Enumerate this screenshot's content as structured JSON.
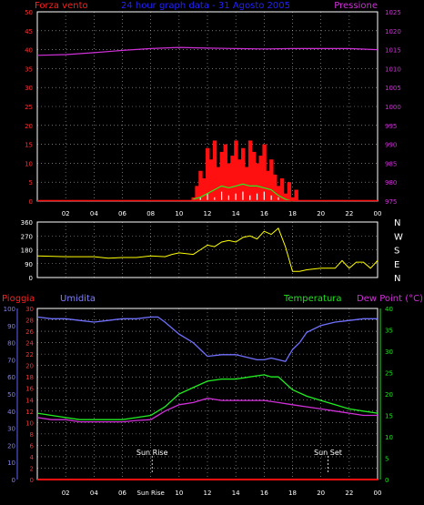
{
  "colors": {
    "background": "#000000",
    "frame": "#ffffff",
    "grid": "#ffffff",
    "wind": "#ff1010",
    "wind_speed": "#ffffff",
    "gust": "#22ee22",
    "pressure": "#d030d8",
    "title": "#2222ff",
    "direction": "#ffff00",
    "humidity": "#7070ff",
    "temperature": "#22ee22",
    "dewpoint": "#d030d8",
    "rain": "#ff1010",
    "axis_rain": "#ff3030",
    "axis_humidity": "#8080ff",
    "axis_temp": "#20e020"
  },
  "chart_data": [
    {
      "type": "line",
      "title": "24 hour graph data - 31 Agosto 2005",
      "left_label": "Forza vento",
      "right_label": "Pressione",
      "x_ticks": [
        "02",
        "04",
        "06",
        "08",
        "10",
        "12",
        "14",
        "16",
        "18",
        "20",
        "22",
        "00"
      ],
      "left_ticks": [
        0,
        5,
        10,
        15,
        20,
        25,
        30,
        35,
        40,
        45,
        50
      ],
      "ylim_left": [
        0,
        50
      ],
      "right_ticks": [
        975,
        980,
        985,
        990,
        995,
        1000,
        1005,
        1010,
        1015,
        1020,
        1025
      ],
      "ylim_right": [
        975,
        1025
      ],
      "series": [
        {
          "id": "pressure",
          "axis": "right",
          "x": [
            0,
            2,
            4,
            6,
            8,
            10,
            12,
            14,
            16,
            18,
            20,
            22,
            24
          ],
          "values": [
            1013.5,
            1013.7,
            1014.2,
            1014.8,
            1015.3,
            1015.6,
            1015.4,
            1015.3,
            1015.2,
            1015.3,
            1015.3,
            1015.3,
            1015.0
          ]
        },
        {
          "id": "wind_gust",
          "axis": "left",
          "style": "bars",
          "x": [
            11,
            11.25,
            11.5,
            11.75,
            12,
            12.25,
            12.5,
            12.75,
            13,
            13.25,
            13.5,
            13.75,
            14,
            14.25,
            14.5,
            14.75,
            15,
            15.25,
            15.5,
            15.75,
            16,
            16.25,
            16.5,
            16.75,
            17,
            17.25,
            17.5,
            17.75,
            18,
            18.25
          ],
          "values": [
            1,
            4,
            8,
            6,
            14,
            11,
            16,
            9,
            13,
            15,
            10,
            12,
            16,
            11,
            14,
            9,
            16,
            13,
            10,
            12,
            15,
            8,
            11,
            7,
            4,
            6,
            2,
            5,
            1,
            3
          ]
        },
        {
          "id": "wind_average",
          "axis": "left",
          "x": [
            11,
            11.5,
            12,
            12.5,
            13,
            13.5,
            14,
            14.5,
            15,
            15.5,
            16,
            16.5,
            17,
            17.5,
            18
          ],
          "values": [
            0.5,
            1,
            2,
            3,
            4,
            3.5,
            4,
            4.5,
            4,
            4,
            3.5,
            3,
            1.5,
            0.5,
            0
          ]
        },
        {
          "id": "wind_speed",
          "axis": "left",
          "style": "spikes",
          "x": [
            11.5,
            12,
            12.5,
            13,
            13.5,
            14,
            14.5,
            15,
            15.5,
            16,
            16.5,
            17
          ],
          "values": [
            1,
            2,
            1,
            2.5,
            1.5,
            2,
            2.5,
            1.5,
            2,
            2.5,
            1.5,
            1
          ]
        }
      ]
    },
    {
      "type": "line",
      "y_ticks": [
        0,
        90,
        180,
        270,
        360
      ],
      "ylim": [
        0,
        360
      ],
      "compass_labels": [
        "N",
        "W",
        "S",
        "E",
        "N"
      ],
      "series": [
        {
          "id": "wind_direction",
          "x": [
            0,
            2,
            4,
            5,
            6,
            7,
            8,
            9,
            9.5,
            10,
            11,
            11.5,
            12,
            12.5,
            13,
            13.5,
            14,
            14.5,
            15,
            15.5,
            16,
            16.5,
            17,
            17.5,
            18,
            18.5,
            19,
            20,
            21,
            21.5,
            22,
            22.5,
            23,
            23.5,
            24
          ],
          "values": [
            140,
            135,
            135,
            125,
            130,
            130,
            140,
            135,
            150,
            160,
            150,
            180,
            210,
            200,
            230,
            240,
            230,
            260,
            270,
            250,
            300,
            280,
            320,
            200,
            40,
            40,
            50,
            60,
            60,
            110,
            60,
            100,
            100,
            60,
            110
          ]
        }
      ]
    },
    {
      "type": "line",
      "left1_label": "Pioggia",
      "left2_label": "Umidita",
      "right1_label": "Temperatura",
      "right2_label": "Dew Point (°C)",
      "x_ticks": [
        "02",
        "04",
        "06",
        "Sun Rise",
        "10",
        "12",
        "14",
        "16",
        "18",
        "20",
        "22",
        "00"
      ],
      "rain_ticks": [
        0,
        2,
        4,
        6,
        8,
        10,
        12,
        14,
        16,
        18,
        20,
        22,
        24,
        26,
        28,
        30
      ],
      "humidity_ticks": [
        0,
        10,
        20,
        30,
        40,
        50,
        60,
        70,
        80,
        90,
        100
      ],
      "temp_ticks": [
        0,
        5,
        10,
        15,
        20,
        25,
        30,
        35,
        40
      ],
      "ylim_rain": [
        0,
        30
      ],
      "ylim_humidity": [
        0,
        100
      ],
      "ylim_temp": [
        0,
        40
      ],
      "annotations": [
        {
          "label": "Sun Rise",
          "x": 8.1
        },
        {
          "label": "Sun Set",
          "x": 20.5
        }
      ],
      "series": [
        {
          "id": "humidity",
          "axis": "humidity",
          "x": [
            0,
            1,
            2,
            3,
            4,
            5,
            6,
            7,
            8,
            8.5,
            9,
            10,
            11,
            11.5,
            12,
            13,
            14,
            15,
            15.5,
            16,
            16.5,
            17,
            17.5,
            18,
            18.5,
            19,
            20,
            21,
            22,
            23,
            24
          ],
          "values": [
            95,
            94,
            94,
            93,
            92,
            93,
            94,
            94,
            95,
            95,
            92,
            85,
            80,
            76,
            72,
            73,
            73,
            71,
            70,
            70,
            71,
            70,
            69,
            76,
            80,
            86,
            90,
            92,
            93,
            94,
            94
          ]
        },
        {
          "id": "temperature",
          "axis": "temp",
          "x": [
            0,
            1,
            2,
            3,
            4,
            5,
            6,
            7,
            8,
            9,
            10,
            11,
            12,
            13,
            14,
            15,
            16,
            16.5,
            17,
            18,
            19,
            20,
            21,
            22,
            23,
            24
          ],
          "values": [
            15.5,
            15,
            14.5,
            14,
            14,
            14,
            14,
            14.5,
            15,
            17,
            20,
            21.5,
            23,
            23.5,
            23.5,
            24,
            24.5,
            24,
            24,
            21,
            19.5,
            18.5,
            17.5,
            16.5,
            16,
            15.5
          ]
        },
        {
          "id": "dew_point",
          "axis": "temp",
          "x": [
            0,
            1,
            2,
            3,
            4,
            5,
            6,
            7,
            8,
            9,
            10,
            11,
            12,
            13,
            14,
            15,
            16,
            17,
            18,
            19,
            20,
            21,
            22,
            23,
            24
          ],
          "values": [
            14.5,
            14,
            14,
            13.5,
            13.5,
            13.5,
            13.5,
            13.8,
            14,
            16,
            17.5,
            18,
            19,
            18.5,
            18.5,
            18.5,
            18.5,
            18,
            17.5,
            17,
            16.5,
            16,
            15.5,
            15,
            15
          ]
        },
        {
          "id": "rain",
          "axis": "rain",
          "x": [
            0,
            24
          ],
          "values": [
            0,
            0
          ]
        }
      ]
    }
  ]
}
